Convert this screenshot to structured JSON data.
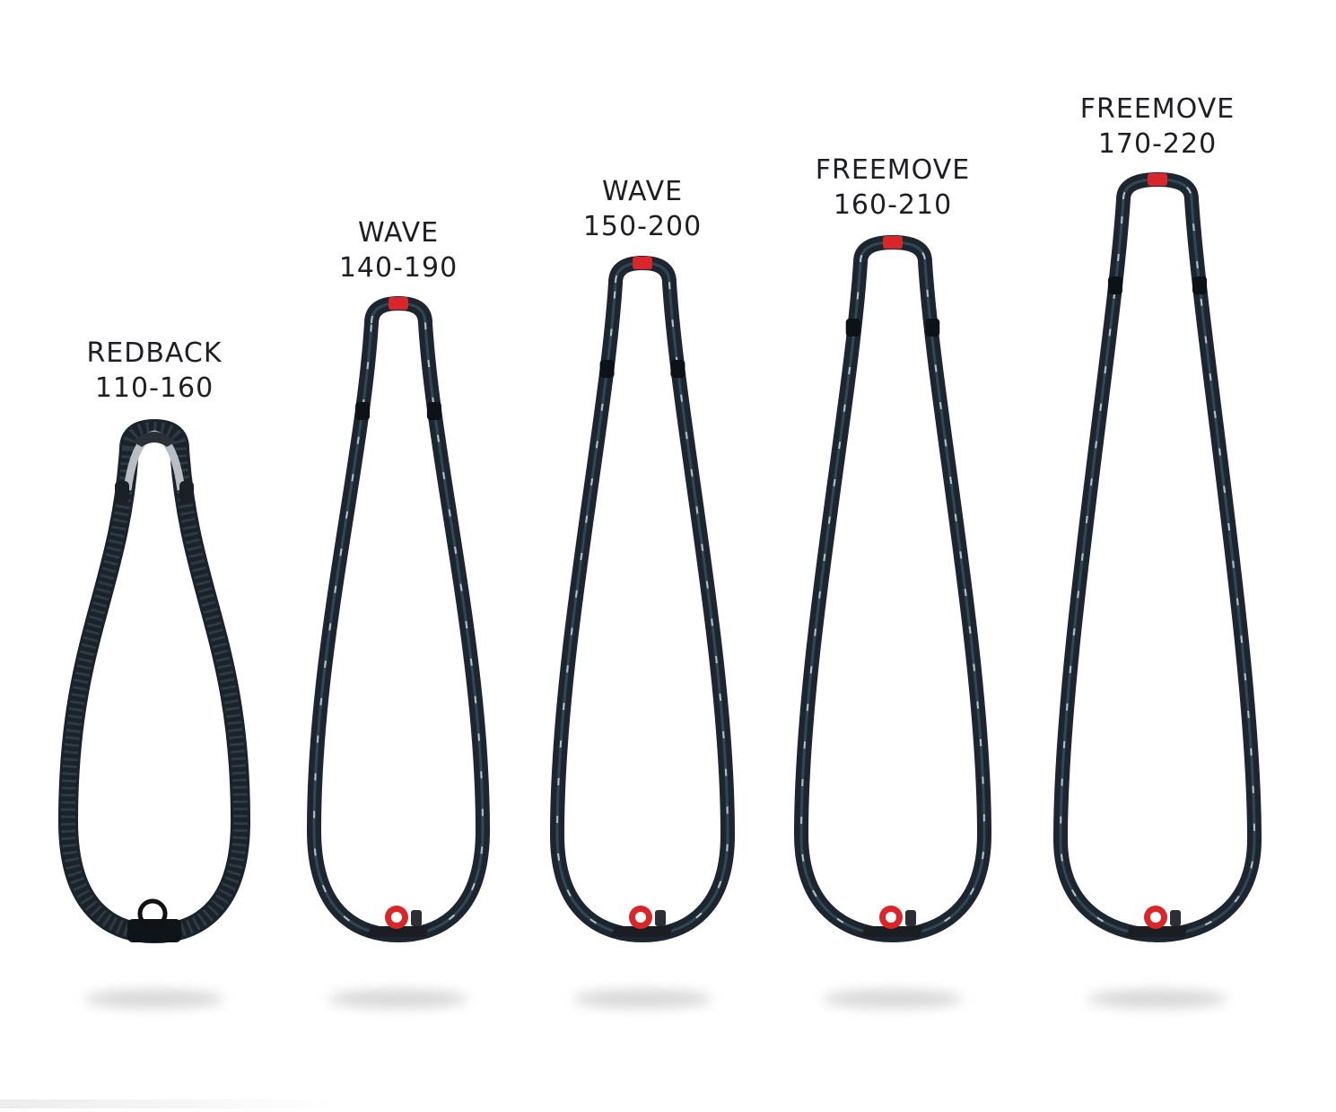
{
  "products": [
    {
      "model": "REDBACK",
      "size_range": "110-160",
      "style": "redback"
    },
    {
      "model": "WAVE",
      "size_range": "140-190",
      "style": "standard"
    },
    {
      "model": "WAVE",
      "size_range": "150-200",
      "style": "standard"
    },
    {
      "model": "FREEMOVE",
      "size_range": "160-210",
      "style": "standard"
    },
    {
      "model": "FREEMOVE",
      "size_range": "170-220",
      "style": "standard"
    }
  ],
  "colors": {
    "background": "#ffffff",
    "label_text": "#1e1f24",
    "tube_dark": "#1c2530",
    "tube_highlight": "#3a5a66",
    "redback_grip": "#2f3a44",
    "accent_red": "#d8262a",
    "aluminium": "#b9bec3",
    "shadow": "#d6d6d6"
  },
  "icons": {
    "clamp": "boom-front-clamp",
    "redback_clamp": "redback-front-clamp"
  }
}
